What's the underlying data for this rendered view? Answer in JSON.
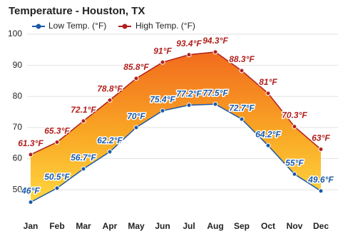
{
  "chart_data": {
    "type": "line",
    "title": "Temperature - Houston, TX",
    "categories": [
      "Jan",
      "Feb",
      "Mar",
      "Apr",
      "May",
      "Jun",
      "Jul",
      "Aug",
      "Sep",
      "Oct",
      "Nov",
      "Dec"
    ],
    "series": [
      {
        "name": "Low Temp. (°F)",
        "color": "#1c5aa6",
        "values": [
          46,
          50.5,
          56.7,
          62.2,
          70,
          75.4,
          77.2,
          77.5,
          72.7,
          64.2,
          55,
          49.6
        ],
        "value_labels": [
          "46°F",
          "50.5°F",
          "56.7°F",
          "62.2°F",
          "70°F",
          "75.4°F",
          "77.2°F",
          "77.5°F",
          "72.7°F",
          "64.2°F",
          "55°F",
          "49.6°F"
        ]
      },
      {
        "name": "High Temp. (°F)",
        "color": "#b0201e",
        "values": [
          61.3,
          65.3,
          72.1,
          78.8,
          85.8,
          91,
          93.4,
          94.3,
          88.3,
          81,
          70.3,
          63
        ],
        "value_labels": [
          "61.3°F",
          "65.3°F",
          "72.1°F",
          "78.8°F",
          "85.8°F",
          "91°F",
          "93.4°F",
          "94.3°F",
          "88.3°F",
          "81°F",
          "70.3°F",
          "63°F"
        ]
      }
    ],
    "ylim": [
      42,
      100
    ],
    "yticks": [
      50,
      60,
      70,
      80,
      90,
      100
    ],
    "grid": true
  }
}
